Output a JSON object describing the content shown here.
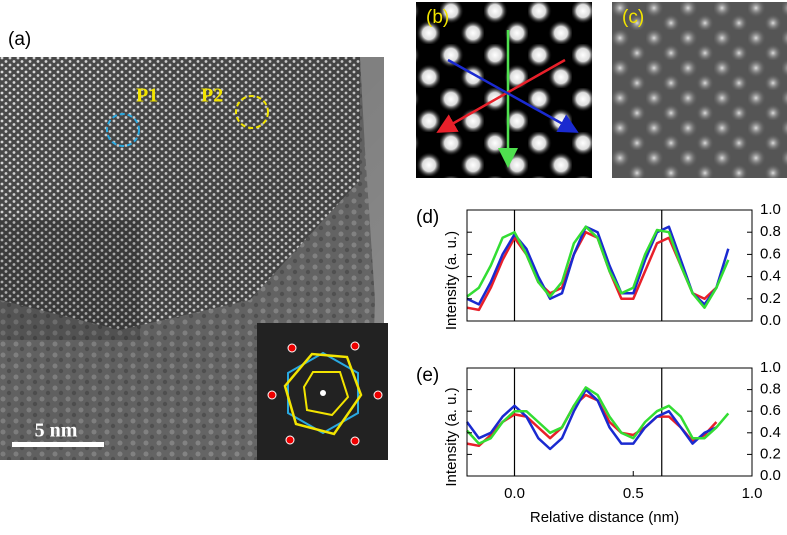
{
  "figure": {
    "panel_a": "(a)",
    "marker_p1": "P1",
    "marker_p2": "P2",
    "scale_bar": "5 nm",
    "panel_b": "(b)",
    "panel_c": "(c)"
  },
  "chart_data": [
    {
      "type": "line",
      "panel_label": "(d)",
      "y_label": "Intensity (a. u.)",
      "x": [
        -0.2,
        -0.15,
        -0.1,
        -0.05,
        0,
        0.05,
        0.1,
        0.15,
        0.2,
        0.25,
        0.3,
        0.35,
        0.4,
        0.45,
        0.5,
        0.55,
        0.6,
        0.65,
        0.7,
        0.75,
        0.8,
        0.85,
        0.9
      ],
      "series": [
        {
          "color": "#e8202a",
          "values": [
            0.12,
            0.1,
            0.3,
            0.55,
            0.75,
            0.6,
            0.35,
            0.25,
            0.3,
            0.6,
            0.8,
            0.75,
            0.45,
            0.2,
            0.2,
            0.45,
            0.7,
            0.75,
            0.5,
            0.25,
            0.2,
            0.3,
            null
          ]
        },
        {
          "color": "#1a2ad0",
          "values": [
            0.2,
            0.15,
            0.35,
            0.6,
            0.78,
            0.65,
            0.4,
            0.2,
            0.25,
            0.6,
            0.85,
            0.8,
            0.5,
            0.25,
            0.25,
            0.55,
            0.8,
            0.85,
            0.55,
            0.25,
            0.15,
            0.3,
            0.65
          ]
        },
        {
          "color": "#33dd33",
          "values": [
            0.22,
            0.3,
            0.5,
            0.75,
            0.8,
            0.6,
            0.35,
            0.22,
            0.35,
            0.7,
            0.85,
            0.75,
            0.45,
            0.25,
            0.3,
            0.6,
            0.82,
            0.8,
            0.5,
            0.25,
            0.12,
            0.3,
            0.55
          ]
        }
      ],
      "vlines": [
        0,
        0.62
      ],
      "xlim": [
        -0.2,
        1.0
      ],
      "ylim": [
        0,
        1.0
      ],
      "yticks": [
        {
          "value": 0,
          "label": "0.0"
        },
        0.2,
        0.4,
        0.6,
        0.8,
        {
          "value": 1,
          "label": "1.0"
        }
      ]
    },
    {
      "type": "line",
      "panel_label": "(e)",
      "y_label": "Intensity (a. u.)",
      "x_label": "Relative distance (nm)",
      "x": [
        -0.2,
        -0.15,
        -0.1,
        -0.05,
        0,
        0.05,
        0.1,
        0.15,
        0.2,
        0.25,
        0.3,
        0.35,
        0.4,
        0.45,
        0.5,
        0.55,
        0.6,
        0.65,
        0.7,
        0.75,
        0.8,
        0.85,
        0.9
      ],
      "series": [
        {
          "color": "#e8202a",
          "values": [
            0.3,
            0.28,
            0.38,
            0.5,
            0.57,
            0.55,
            0.45,
            0.35,
            0.45,
            0.65,
            0.75,
            0.7,
            0.5,
            0.4,
            0.38,
            0.45,
            0.55,
            0.55,
            0.45,
            0.32,
            0.38,
            0.5,
            null
          ]
        },
        {
          "color": "#1a2ad0",
          "values": [
            0.5,
            0.35,
            0.4,
            0.55,
            0.65,
            0.55,
            0.35,
            0.25,
            0.35,
            0.6,
            0.8,
            0.7,
            0.45,
            0.3,
            0.3,
            0.45,
            0.55,
            0.6,
            0.45,
            0.3,
            0.4,
            0.45,
            null
          ]
        },
        {
          "color": "#33dd33",
          "values": [
            0.42,
            0.3,
            0.35,
            0.5,
            0.6,
            0.6,
            0.5,
            0.4,
            0.45,
            0.65,
            0.82,
            0.75,
            0.55,
            0.4,
            0.35,
            0.5,
            0.6,
            0.65,
            0.55,
            0.35,
            0.35,
            0.45,
            0.58
          ]
        }
      ],
      "vlines": [
        0,
        0.62
      ],
      "xlim": [
        -0.2,
        1.0
      ],
      "ylim": [
        0,
        1.0
      ],
      "xticks": [
        {
          "value": 0,
          "label": "0.0"
        },
        0.5,
        {
          "value": 1,
          "label": "1.0"
        }
      ],
      "yticks": [
        {
          "value": 0,
          "label": "0.0"
        },
        0.2,
        0.4,
        0.6,
        0.8,
        {
          "value": 1,
          "label": "1.0"
        }
      ]
    }
  ]
}
